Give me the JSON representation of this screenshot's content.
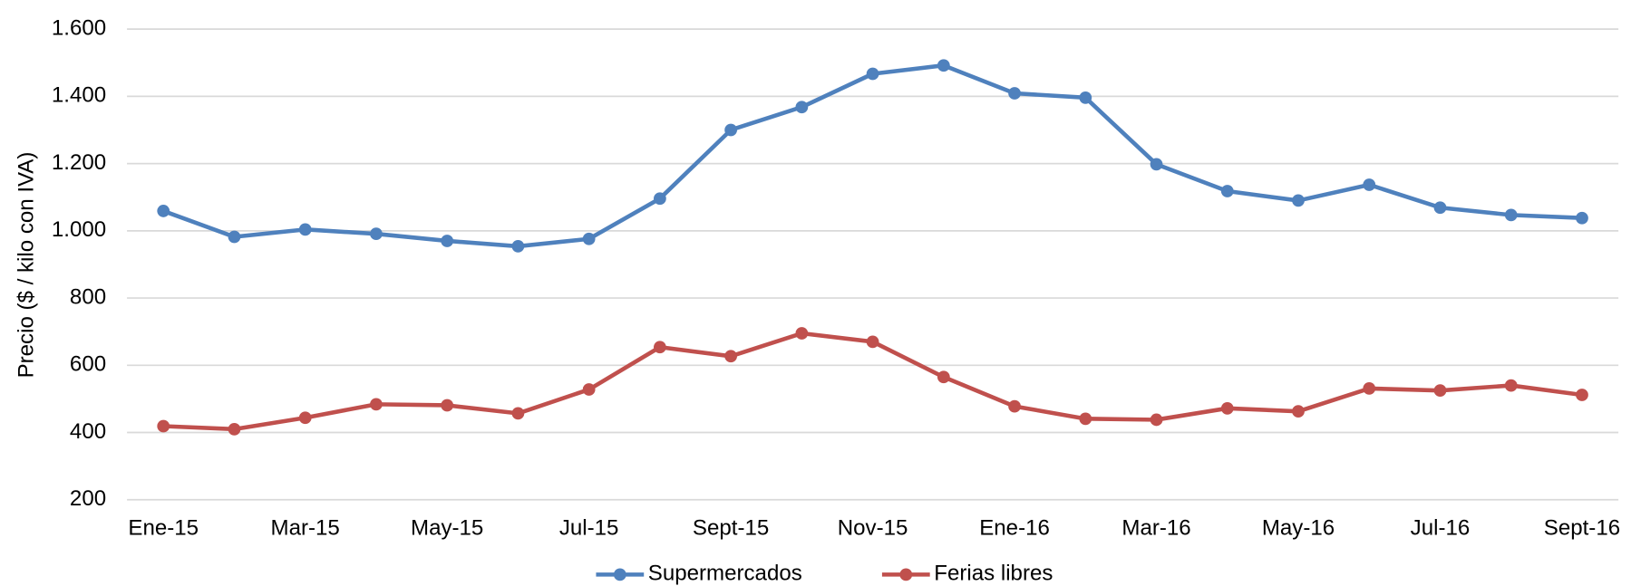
{
  "chart_data": {
    "type": "line",
    "ylabel": "Precio ($ / kilo con IVA)",
    "categories": [
      "Ene-15",
      null,
      "Mar-15",
      null,
      "May-15",
      null,
      "Jul-15",
      null,
      "Sept-15",
      null,
      "Nov-15",
      null,
      "Ene-16",
      null,
      "Mar-16",
      null,
      "May-16",
      null,
      "Jul-16",
      null,
      "Sept-16"
    ],
    "series": [
      {
        "name": "Supermercados",
        "color": "#4f81bd",
        "values": [
          1059,
          982,
          1004,
          991,
          970,
          954,
          976,
          1096,
          1300,
          1368,
          1467,
          1492,
          1409,
          1396,
          1198,
          1118,
          1090,
          1137,
          1069,
          1047,
          1038
        ]
      },
      {
        "name": "Ferias libres",
        "color": "#c0504d",
        "values": [
          419,
          410,
          444,
          484,
          481,
          457,
          528,
          654,
          627,
          695,
          670,
          565,
          478,
          441,
          438,
          472,
          463,
          531,
          525,
          540,
          512
        ]
      }
    ],
    "ylim": [
      200,
      1600
    ],
    "yticks": [
      200,
      400,
      600,
      800,
      {
        "value": 1000,
        "label": "1.000"
      },
      {
        "value": 1200,
        "label": "1.200"
      },
      {
        "value": 1400,
        "label": "1.400"
      },
      {
        "value": 1600,
        "label": "1.600"
      }
    ],
    "grid": true,
    "legend": "bottom"
  }
}
